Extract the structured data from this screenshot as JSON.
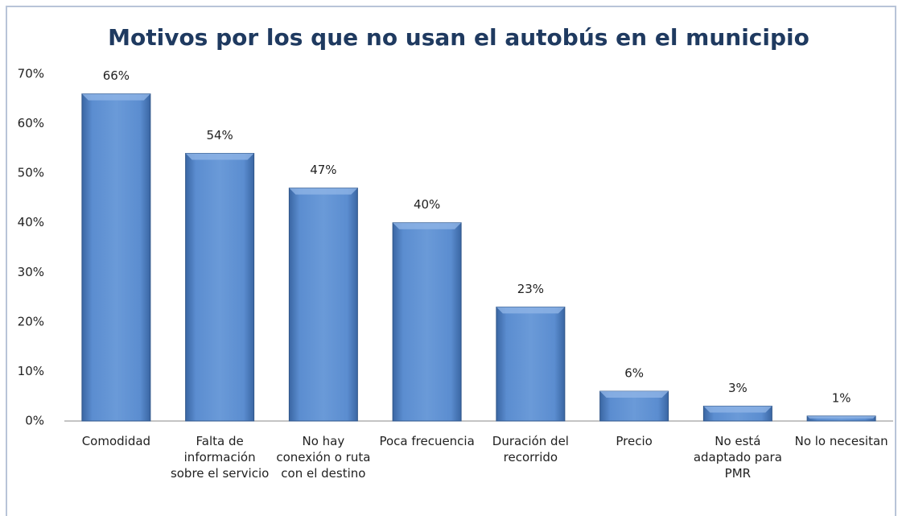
{
  "chart_data": {
    "type": "bar",
    "title": "Motivos por los que no usan el autobús en el municipio",
    "categories": [
      "Comodidad",
      "Falta de información sobre el servicio",
      "No hay conexión o ruta con el destino",
      "Poca frecuencia",
      "Duración del recorrido",
      "Precio",
      "No está adaptado para PMR",
      "No lo necesitan"
    ],
    "values": [
      66,
      54,
      47,
      40,
      23,
      6,
      3,
      1
    ],
    "value_labels": [
      "66%",
      "54%",
      "47%",
      "40%",
      "23%",
      "6%",
      "3%",
      "1%"
    ],
    "color": "#4f81bd",
    "ylim": [
      0,
      70
    ],
    "yticks": [
      {
        "value": 0,
        "label": "0%"
      },
      {
        "value": 10,
        "label": "10%"
      },
      {
        "value": 20,
        "label": "20%"
      },
      {
        "value": 30,
        "label": "30%"
      },
      {
        "value": 40,
        "label": "40%"
      },
      {
        "value": 50,
        "label": "50%"
      },
      {
        "value": 60,
        "label": "60%"
      },
      {
        "value": 70,
        "label": "70%"
      }
    ],
    "grid": false
  }
}
